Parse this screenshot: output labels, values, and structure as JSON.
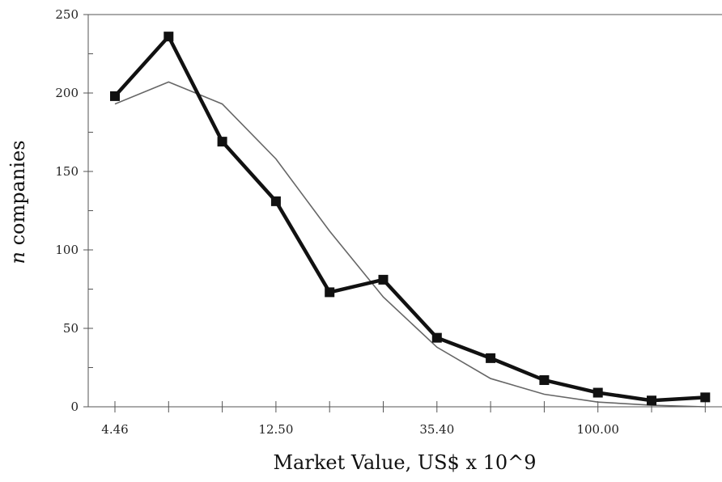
{
  "chart_data": {
    "type": "line",
    "xlabel": "Market Value, US$ x 10^9",
    "ylabel_italic": "n",
    "ylabel_rest": " companies",
    "ylim": [
      0,
      250
    ],
    "yticks": [
      0,
      50,
      100,
      150,
      200,
      250
    ],
    "x_positions": [
      1,
      2,
      3,
      4,
      5,
      6,
      7,
      8,
      9,
      10,
      11,
      12,
      13,
      14
    ],
    "x_tick_labels": [
      {
        "at": 1,
        "label": "4.46"
      },
      {
        "at": 4,
        "label": "12.50"
      },
      {
        "at": 7,
        "label": "35.40"
      },
      {
        "at": 10,
        "label": "100.00"
      }
    ],
    "grid": false,
    "series": [
      {
        "values": [
          198,
          236,
          169,
          131,
          73,
          81,
          44,
          31,
          17,
          9,
          4,
          6
        ],
        "x": [
          1,
          2,
          3,
          4,
          5,
          6,
          7,
          8,
          9,
          10,
          11,
          12
        ],
        "color": "#111111",
        "marker": "square",
        "weight": "bold"
      },
      {
        "values": [
          193,
          207,
          193,
          158,
          112,
          70,
          38,
          18,
          8,
          3,
          1,
          0
        ],
        "x": [
          1,
          2,
          3,
          4,
          5,
          6,
          7,
          8,
          9,
          10,
          11,
          12
        ],
        "color": "#666666",
        "marker": "none",
        "weight": "thin"
      }
    ]
  }
}
